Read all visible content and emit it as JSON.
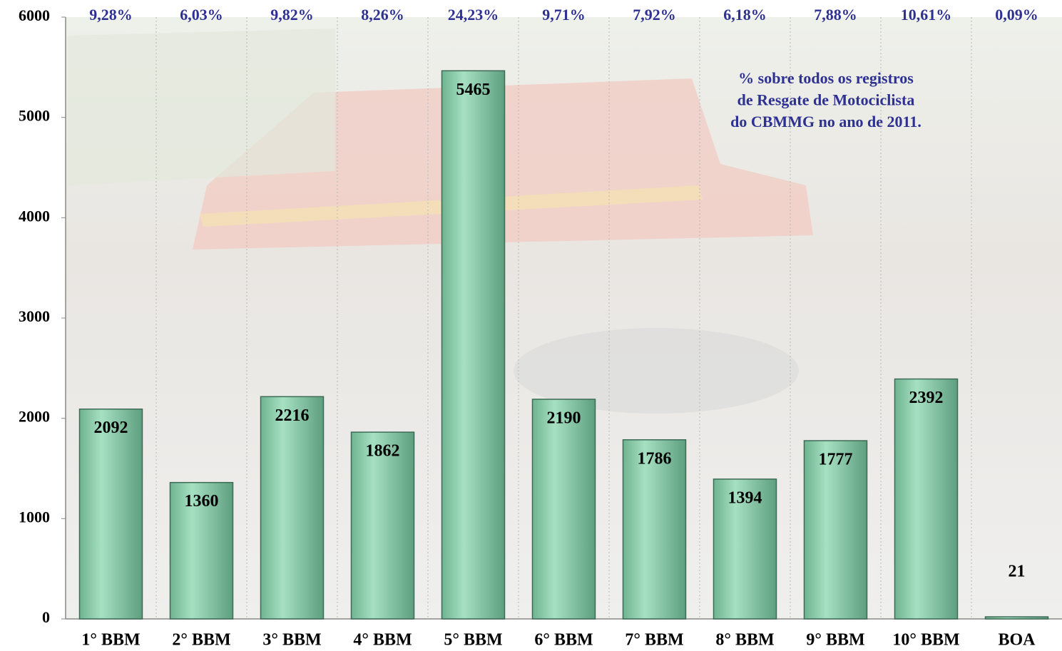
{
  "chart_data": {
    "type": "bar",
    "categories": [
      "1° BBM",
      "2° BBM",
      "3° BBM",
      "4° BBM",
      "5° BBM",
      "6° BBM",
      "7° BBM",
      "8° BBM",
      "9° BBM",
      "10° BBM",
      "BOA"
    ],
    "values": [
      2092,
      1360,
      2216,
      1862,
      5465,
      2190,
      1786,
      1394,
      1777,
      2392,
      21
    ],
    "percent_labels": [
      "9,28%",
      "6,03%",
      "9,82%",
      "8,26%",
      "24,23%",
      "9,71%",
      "7,92%",
      "6,18%",
      "7,88%",
      "10,61%",
      "0,09%"
    ],
    "annotation": [
      "% sobre todos os registros",
      "de Resgate de Motociclista",
      "do CBMMG no ano de 2011."
    ],
    "color": "#8fd1ae",
    "ylim": [
      0,
      6000
    ],
    "yticks": [
      0,
      1000,
      2000,
      3000,
      4000,
      5000,
      6000
    ],
    "grid": false
  }
}
